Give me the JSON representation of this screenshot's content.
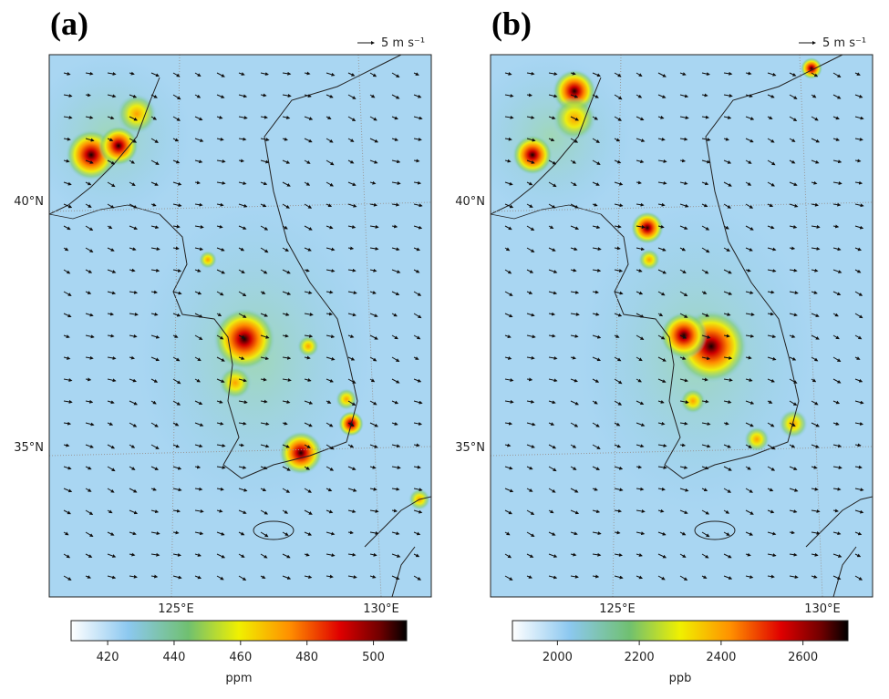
{
  "panels": [
    {
      "label": "(a)",
      "wind_scale": "5 m s⁻¹",
      "lat_labels": [
        "40°N",
        "35°N"
      ],
      "lon_labels": [
        "125°E",
        "130°E"
      ],
      "colorbar": {
        "lim": [
          409,
          510
        ],
        "ticks": [
          420,
          440,
          460,
          480,
          500
        ],
        "label": "ppm"
      }
    },
    {
      "label": "(b)",
      "wind_scale": "5 m s⁻¹",
      "lat_labels": [
        "40°N",
        "35°N"
      ],
      "lon_labels": [
        "125°E",
        "130°E"
      ],
      "colorbar": {
        "lim": [
          1890,
          2710
        ],
        "ticks": [
          2000,
          2200,
          2400,
          2600
        ],
        "label": "ppb"
      }
    }
  ]
}
